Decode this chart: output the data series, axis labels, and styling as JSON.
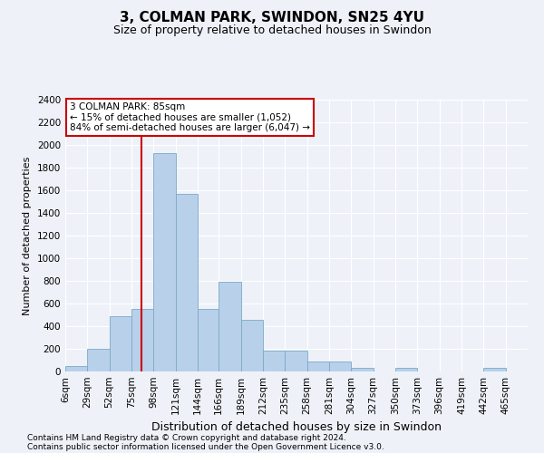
{
  "title": "3, COLMAN PARK, SWINDON, SN25 4YU",
  "subtitle": "Size of property relative to detached houses in Swindon",
  "xlabel": "Distribution of detached houses by size in Swindon",
  "ylabel": "Number of detached properties",
  "footnote1": "Contains HM Land Registry data © Crown copyright and database right 2024.",
  "footnote2": "Contains public sector information licensed under the Open Government Licence v3.0.",
  "annotation_line1": "3 COLMAN PARK: 85sqm",
  "annotation_line2": "← 15% of detached houses are smaller (1,052)",
  "annotation_line3": "84% of semi-detached houses are larger (6,047) →",
  "bar_color": "#b8d0ea",
  "bar_edge_color": "#7aaac8",
  "red_line_x": 85,
  "categories": [
    "6sqm",
    "29sqm",
    "52sqm",
    "75sqm",
    "98sqm",
    "121sqm",
    "144sqm",
    "166sqm",
    "189sqm",
    "212sqm",
    "235sqm",
    "258sqm",
    "281sqm",
    "304sqm",
    "327sqm",
    "350sqm",
    "373sqm",
    "396sqm",
    "419sqm",
    "442sqm",
    "465sqm"
  ],
  "bin_edges": [
    6,
    29,
    52,
    75,
    98,
    121,
    144,
    166,
    189,
    212,
    235,
    258,
    281,
    304,
    327,
    350,
    373,
    396,
    419,
    442,
    465,
    488
  ],
  "values": [
    50,
    200,
    490,
    550,
    1930,
    1570,
    550,
    790,
    460,
    185,
    185,
    90,
    85,
    30,
    0,
    30,
    0,
    0,
    0,
    30,
    0
  ],
  "ylim": [
    0,
    2400
  ],
  "yticks": [
    0,
    200,
    400,
    600,
    800,
    1000,
    1200,
    1400,
    1600,
    1800,
    2000,
    2200,
    2400
  ],
  "background_color": "#eef2f8",
  "grid_color": "#ffffff",
  "title_fontsize": 11,
  "subtitle_fontsize": 9,
  "ylabel_fontsize": 8,
  "xlabel_fontsize": 9,
  "annotation_box_facecolor": "#ffffff",
  "annotation_box_edgecolor": "#cc0000",
  "red_line_color": "#cc0000",
  "footnote_fontsize": 6.5,
  "tick_label_fontsize": 7.5
}
